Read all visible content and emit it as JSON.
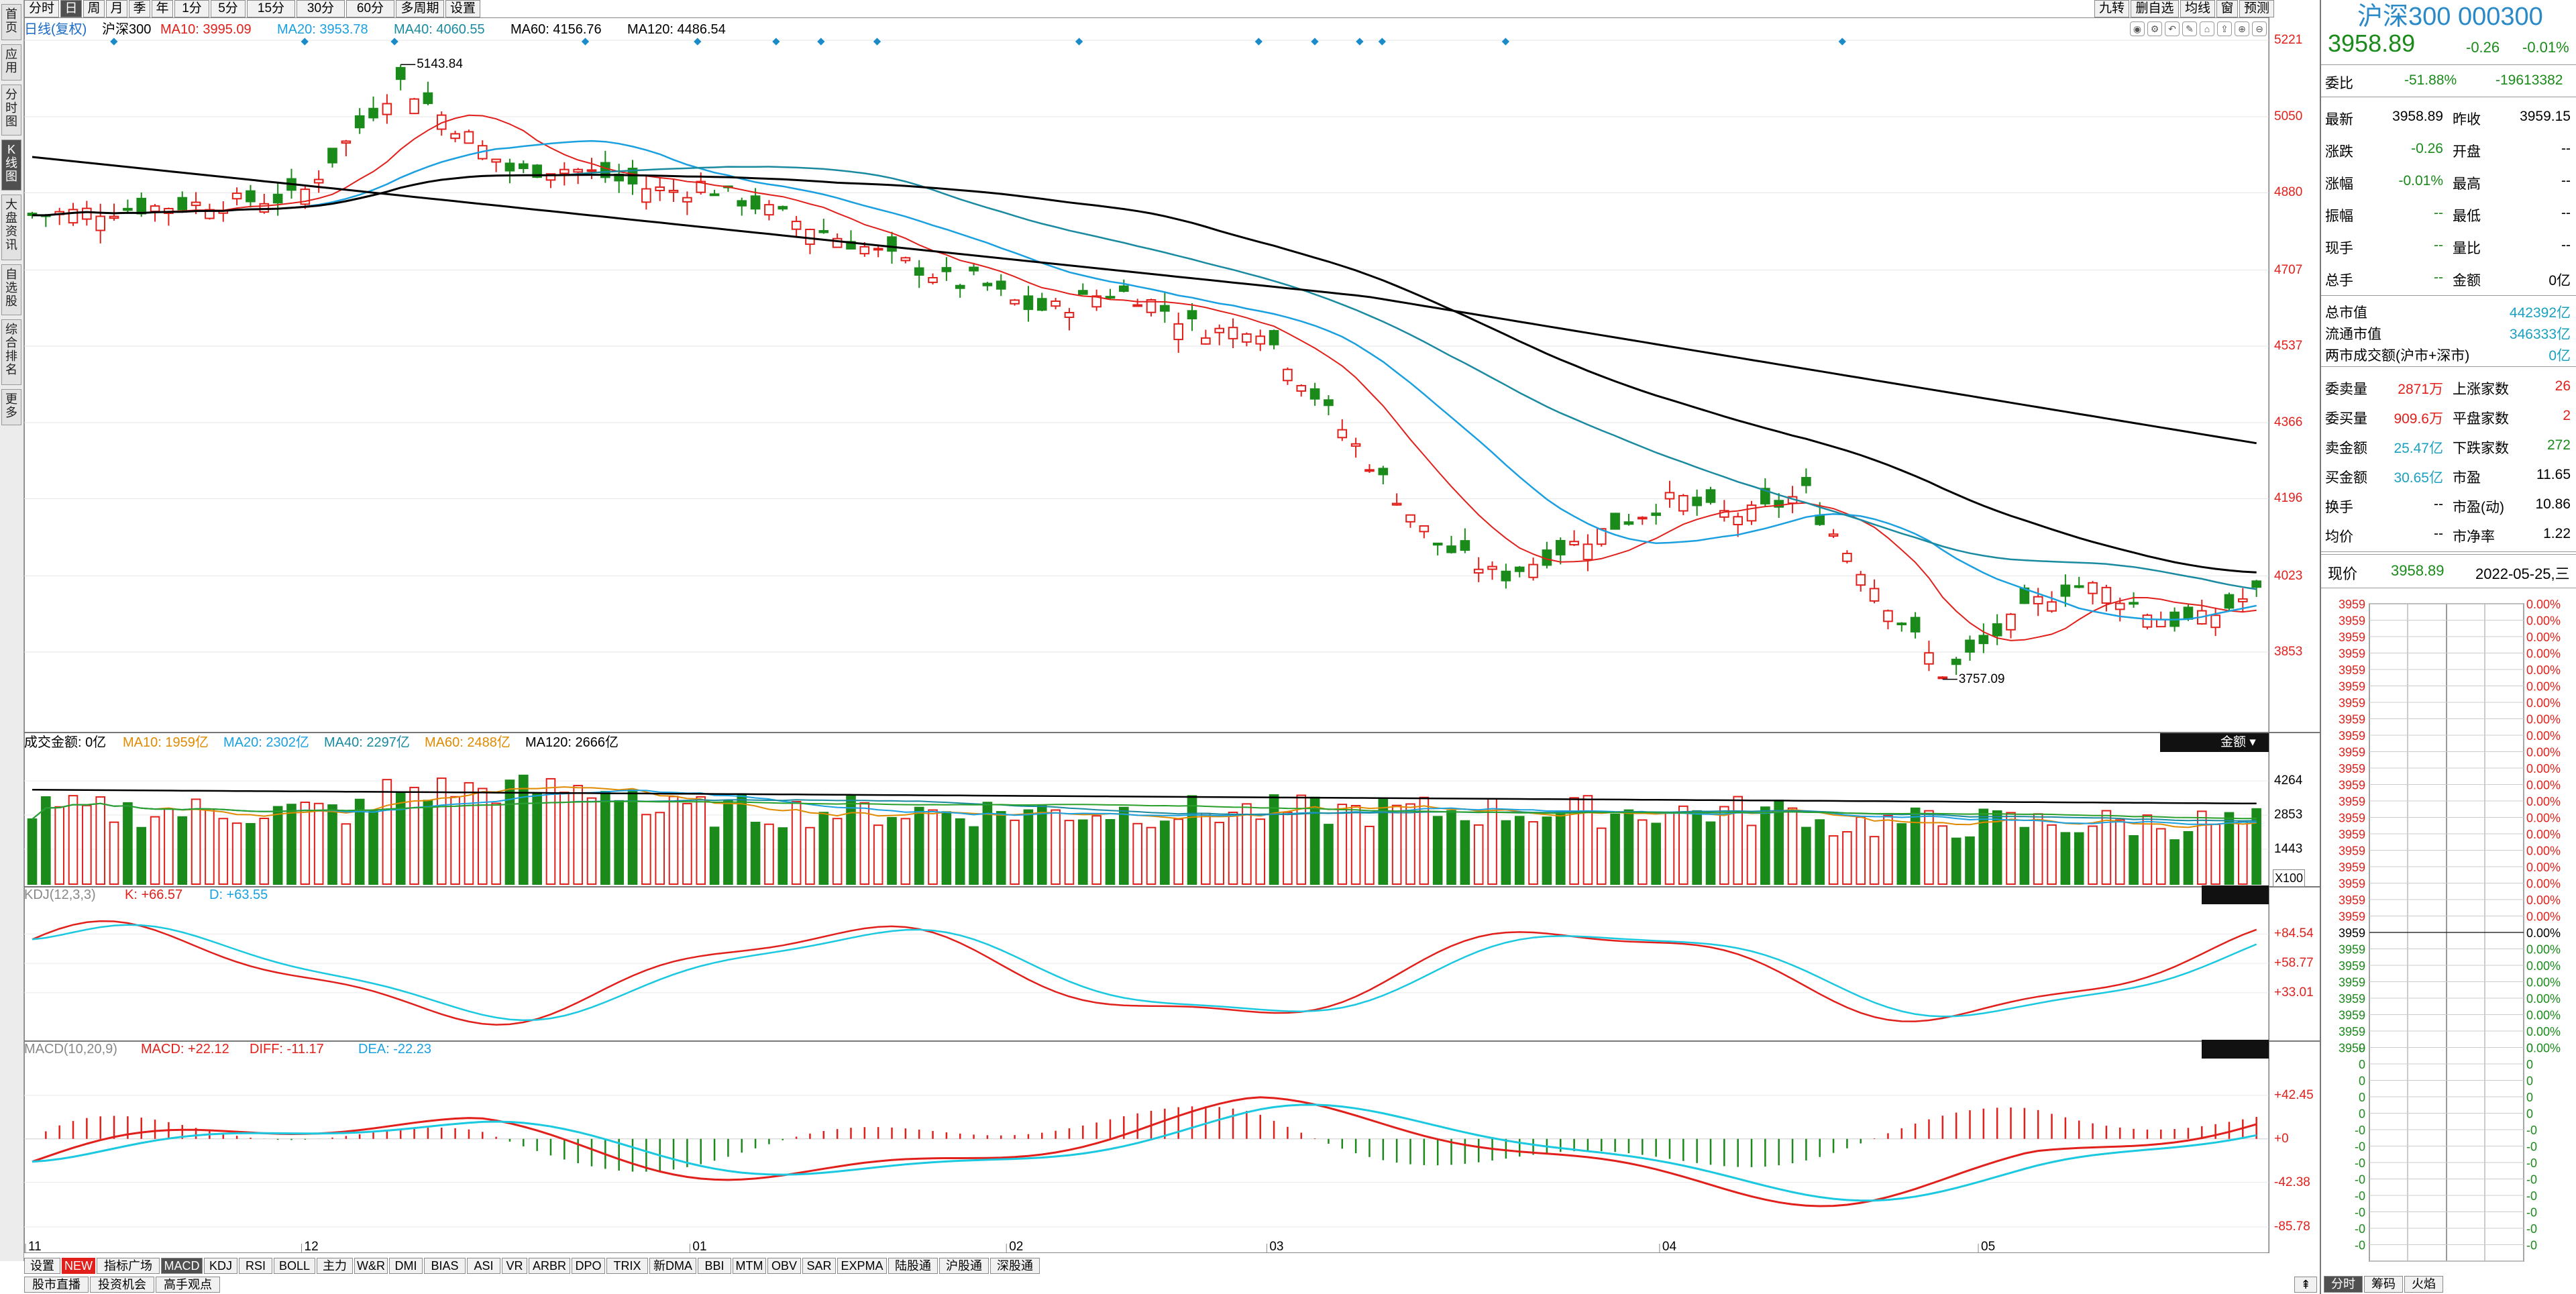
{
  "periodToolbar": {
    "items": [
      "分时",
      "日",
      "周",
      "月",
      "季",
      "年",
      "1分",
      "5分",
      "15分",
      "30分",
      "60分",
      "多周期",
      "设置"
    ],
    "selected": "日"
  },
  "rightTools": {
    "items": [
      "九转",
      "删自选",
      "均线",
      "窗",
      "预测"
    ]
  },
  "leftNav": {
    "items": [
      "首页",
      "应用",
      "分时图",
      "K线图",
      "大盘资讯",
      "自选股",
      "综合排名",
      "更多"
    ],
    "selected": "K线图"
  },
  "priceChart": {
    "legend": [
      {
        "text": "日线(复权)",
        "color": "#1a6ac8"
      },
      {
        "text": "沪深300",
        "color": "#000000"
      },
      {
        "text": "MA10: 3995.09",
        "color": "#e1201b"
      },
      {
        "text": "MA20: 3953.78",
        "color": "#1aa0e0"
      },
      {
        "text": "MA40: 4060.55",
        "color": "#1a8aa0"
      },
      {
        "text": "MA60: 4156.76",
        "color": "#000000"
      },
      {
        "text": "MA120: 4486.54",
        "color": "#000000"
      }
    ],
    "axis": [
      "5221",
      "5050",
      "4880",
      "4707",
      "4537",
      "4366",
      "4196",
      "4023",
      "3853"
    ],
    "high_label": "5143.84",
    "low_label": "3757.09"
  },
  "volumeChart": {
    "legend": [
      {
        "text": "成交金额: 0亿",
        "color": "#000000"
      },
      {
        "text": "MA10: 1959亿",
        "color": "#e08a00"
      },
      {
        "text": "MA20: 2302亿",
        "color": "#1aa0e0"
      },
      {
        "text": "MA40: 2297亿",
        "color": "#1a8aa0"
      },
      {
        "text": "MA60: 2488亿",
        "color": "#e08a00"
      },
      {
        "text": "MA120: 2666亿",
        "color": "#000000"
      }
    ],
    "axis": [
      "4264",
      "2853",
      "1443"
    ],
    "unit": "X100",
    "tag": "金额"
  },
  "kdjChart": {
    "legend": [
      {
        "text": "KDJ(12,3,3)",
        "color": "#888888"
      },
      {
        "text": "K: +66.57",
        "color": "#e1201b"
      },
      {
        "text": "D: +63.55",
        "color": "#1aa0e0"
      }
    ],
    "axis": [
      "+84.54",
      "+58.77",
      "+33.01"
    ]
  },
  "macdChart": {
    "legend": [
      {
        "text": "MACD(10,20,9)",
        "color": "#888888"
      },
      {
        "text": "MACD: +22.12",
        "color": "#e1201b"
      },
      {
        "text": "DIFF: -11.17",
        "color": "#e1201b"
      },
      {
        "text": "DEA: -22.23",
        "color": "#1aa0e0"
      }
    ],
    "axis": [
      "+42.45",
      "+0",
      "-42.38",
      "-85.78"
    ]
  },
  "xAxis": [
    "11",
    "12",
    "01",
    "02",
    "03",
    "04",
    "05"
  ],
  "indicatorTabs": {
    "items": [
      "设置",
      "NEW",
      "指标广场",
      "MACD",
      "KDJ",
      "RSI",
      "BOLL",
      "主力",
      "W&R",
      "DMI",
      "BIAS",
      "ASI",
      "VR",
      "ARBR",
      "DPO",
      "TRIX",
      "新DMA",
      "BBI",
      "MTM",
      "OBV",
      "SAR",
      "EXPMA",
      "陆股通",
      "沪股通",
      "深股通"
    ],
    "selected": "MACD"
  },
  "bottomLinks": [
    "股市直播",
    "投资机会",
    "高手观点"
  ],
  "quote": {
    "title": "沪深300 000300",
    "price": "3958.89",
    "change": "-0.26",
    "pct": "-0.01%",
    "weibi_label": "委比",
    "weibi": "-51.88%",
    "weicha": "-19613382",
    "rows1": [
      [
        "最新",
        "3958.89",
        "昨收",
        "3959.15"
      ],
      [
        "涨跌",
        "-0.26",
        "开盘",
        "--"
      ],
      [
        "涨幅",
        "-0.01%",
        "最高",
        "--"
      ],
      [
        "振幅",
        "--",
        "最低",
        "--"
      ],
      [
        "现手",
        "--",
        "量比",
        "--"
      ],
      [
        "总手",
        "--",
        "金额",
        "0亿"
      ]
    ],
    "rows2": [
      [
        "总市值",
        "442392亿"
      ],
      [
        "流通市值",
        "346333亿"
      ],
      [
        "两市成交额(沪市+深市)",
        "0亿"
      ]
    ],
    "rows3": [
      [
        "委卖量",
        "2871万",
        "上涨家数",
        "26"
      ],
      [
        "委买量",
        "909.6万",
        "平盘家数",
        "2"
      ],
      [
        "卖金额",
        "25.47亿",
        "下跌家数",
        "272"
      ],
      [
        "买金额",
        "30.65亿",
        "市盈",
        "11.65"
      ],
      [
        "换手",
        "--",
        "市盈(动)",
        "10.86"
      ],
      [
        "均价",
        "--",
        "市净率",
        "1.22"
      ]
    ],
    "mini_label": "现价",
    "mini_price": "3958.89",
    "mini_date": "2022-05-25,三",
    "mini_axis_left": "3959",
    "mini_axis_right": "0.00%",
    "mini_axis_zero": "0",
    "mini_axis_neg": "-0",
    "bottomTabs": [
      "分时",
      "筹码",
      "火焰"
    ]
  },
  "colors": {
    "up": "#e1201b",
    "down": "#1a8a1a",
    "ma10": "#e1201b",
    "ma20": "#1aa0e0",
    "ma40": "#1a8aa0",
    "ma60": "#000000"
  }
}
